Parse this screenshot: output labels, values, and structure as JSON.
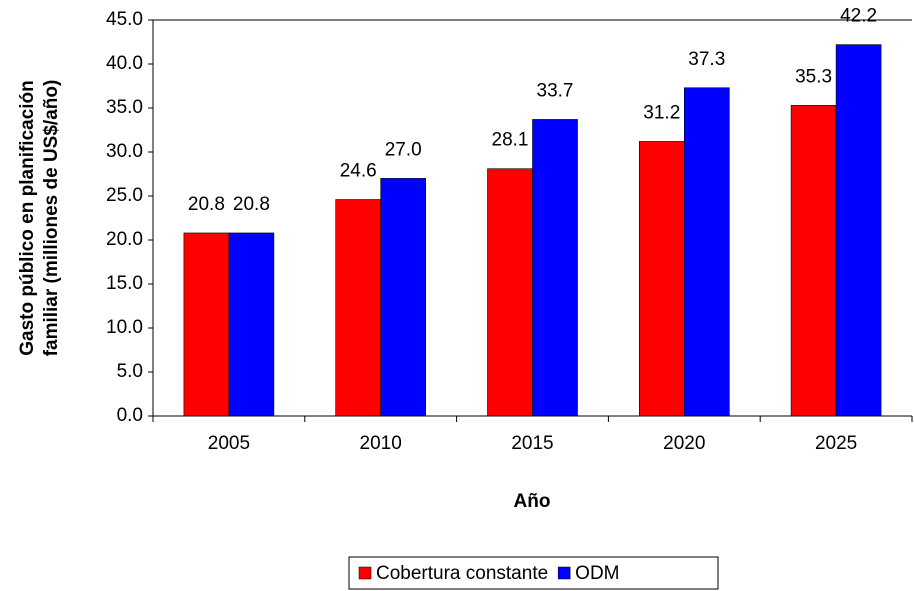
{
  "chart_data": {
    "type": "bar",
    "ylabel": [
      "Gasto público en planificación",
      "familiar (milliones de US$/año)"
    ],
    "xlabel": "Año",
    "categories": [
      "2005",
      "2010",
      "2015",
      "2020",
      "2025"
    ],
    "series": [
      {
        "name": "Cobertura constante",
        "color": "#ff0000",
        "values": [
          20.8,
          24.6,
          28.1,
          31.2,
          35.3
        ],
        "value_labels": [
          "20.8",
          "24.6",
          "28.1",
          "31.2",
          "35.3"
        ]
      },
      {
        "name": "ODM",
        "color": "#0000ff",
        "values": [
          20.8,
          27.0,
          33.7,
          37.3,
          42.2
        ],
        "value_labels": [
          "20.8",
          "27.0",
          "33.7",
          "37.3",
          "42.2"
        ]
      }
    ],
    "ylim": [
      0,
      45
    ],
    "yticks": [
      {
        "value": 0,
        "label": "0.0"
      },
      {
        "value": 5,
        "label": "5.0"
      },
      {
        "value": 10,
        "label": "10.0"
      },
      {
        "value": 15,
        "label": "15.0"
      },
      {
        "value": 20,
        "label": "20.0"
      },
      {
        "value": 25,
        "label": "25.0"
      },
      {
        "value": 30,
        "label": "30.0"
      },
      {
        "value": 35,
        "label": "35.0"
      },
      {
        "value": 40,
        "label": "40.0"
      },
      {
        "value": 45,
        "label": "45.0"
      }
    ],
    "grid": false,
    "legend": "bottom"
  }
}
